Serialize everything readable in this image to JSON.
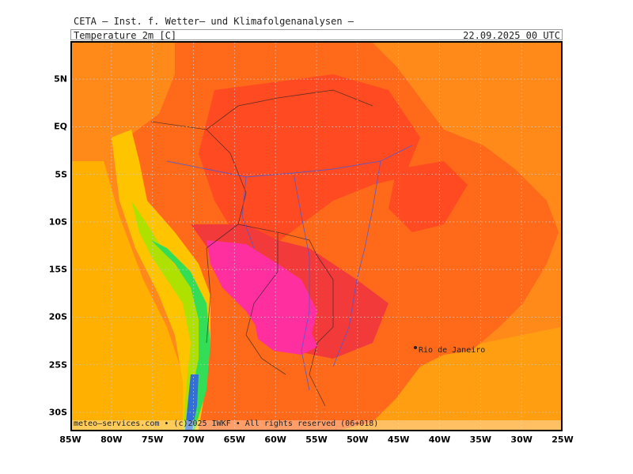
{
  "header": {
    "title": "CETA — Inst. f. Wetter— und Klimafolgenanalysen —",
    "variable": "Temperature 2m [C]",
    "datetime": "22.09.2025 00 UTC"
  },
  "map": {
    "city_label": "Rio de Janeiro",
    "footer": "meteo—services.com • (c)2025 IWKF • All rights reserved (06+018)"
  },
  "axes": {
    "lat_labels": [
      {
        "text": "5N",
        "value": 5
      },
      {
        "text": "EQ",
        "value": 0
      },
      {
        "text": "5S",
        "value": -5
      },
      {
        "text": "10S",
        "value": -10
      },
      {
        "text": "15S",
        "value": -15
      },
      {
        "text": "20S",
        "value": -20
      },
      {
        "text": "25S",
        "value": -25
      },
      {
        "text": "30S",
        "value": -30
      }
    ],
    "lon_labels": [
      {
        "text": "85W",
        "value": -85
      },
      {
        "text": "80W",
        "value": -80
      },
      {
        "text": "75W",
        "value": -75
      },
      {
        "text": "70W",
        "value": -70
      },
      {
        "text": "65W",
        "value": -65
      },
      {
        "text": "60W",
        "value": -60
      },
      {
        "text": "55W",
        "value": -55
      },
      {
        "text": "50W",
        "value": -50
      },
      {
        "text": "45W",
        "value": -45
      },
      {
        "text": "40W",
        "value": -40
      },
      {
        "text": "35W",
        "value": -35
      },
      {
        "text": "30W",
        "value": -30
      },
      {
        "text": "25W",
        "value": -25
      }
    ],
    "lon_range": [
      -85,
      -25
    ],
    "lat_range": [
      -32,
      9
    ]
  },
  "colors": {
    "ocean": "#ff8a1a",
    "land": "#ff6a1a",
    "hot": "#ff4a22",
    "hotter": "#f23a3a",
    "hottest": "#ff2fa0",
    "cool": "#ffc400",
    "cooler": "#aee000",
    "cold": "#33dd55",
    "coldest": "#3070d8",
    "grid": "#c8c8c8"
  }
}
